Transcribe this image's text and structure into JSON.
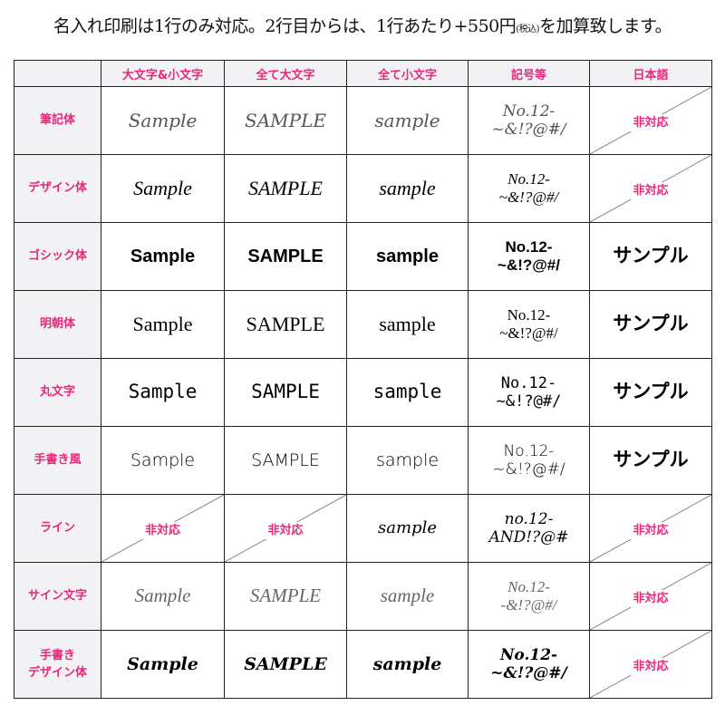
{
  "title": {
    "main": "名入れ印刷は1行のみ対応。2行目からは、1行あたり+550円",
    "tax": "(税込)",
    "tail": "を加算致します。"
  },
  "colors": {
    "accent": "#e8287a",
    "header_bg": "#f2f2f5"
  },
  "columns": [
    "",
    "大文字&小文字",
    "全て大文字",
    "全て小文字",
    "記号等",
    "日本語"
  ],
  "rows": [
    {
      "label": "筆記体",
      "cells": [
        "Sample",
        "SAMPLE",
        "sample",
        "No.12-\n~&!?@#/",
        null
      ]
    },
    {
      "label": "デザイン体",
      "cells": [
        "Sample",
        "SAMPLE",
        "sample",
        "No.12-\n~&!?@#/",
        null
      ]
    },
    {
      "label": "ゴシック体",
      "cells": [
        "Sample",
        "SAMPLE",
        "sample",
        "No.12-\n~&!?@#/",
        "サンプル"
      ]
    },
    {
      "label": "明朝体",
      "cells": [
        "Sample",
        "SAMPLE",
        "sample",
        "No.12-\n~&!?@#/",
        "サンプル"
      ]
    },
    {
      "label": "丸文字",
      "cells": [
        "Sample",
        "SAMPLE",
        "sample",
        "No.12-\n~&!?@#/",
        "サンプル"
      ]
    },
    {
      "label": "手書き風",
      "cells": [
        "Sample",
        "SAMPLE",
        "sample",
        "No.12-\n~&!?@#/",
        "サンプル"
      ]
    },
    {
      "label": "ライン",
      "cells": [
        null,
        null,
        "sample",
        "no.12-\nAND!?@#",
        null
      ]
    },
    {
      "label": "サイン文字",
      "cells": [
        "Sample",
        "SAMPLE",
        "sample",
        "No.12-\n-&!?@#/",
        null
      ]
    },
    {
      "label": "手書き\nデザイン体",
      "cells": [
        "Sample",
        "SAMPLE",
        "sample",
        "No.12-\n~&!?@#/",
        null
      ]
    }
  ],
  "unsupported_label": "非対応"
}
